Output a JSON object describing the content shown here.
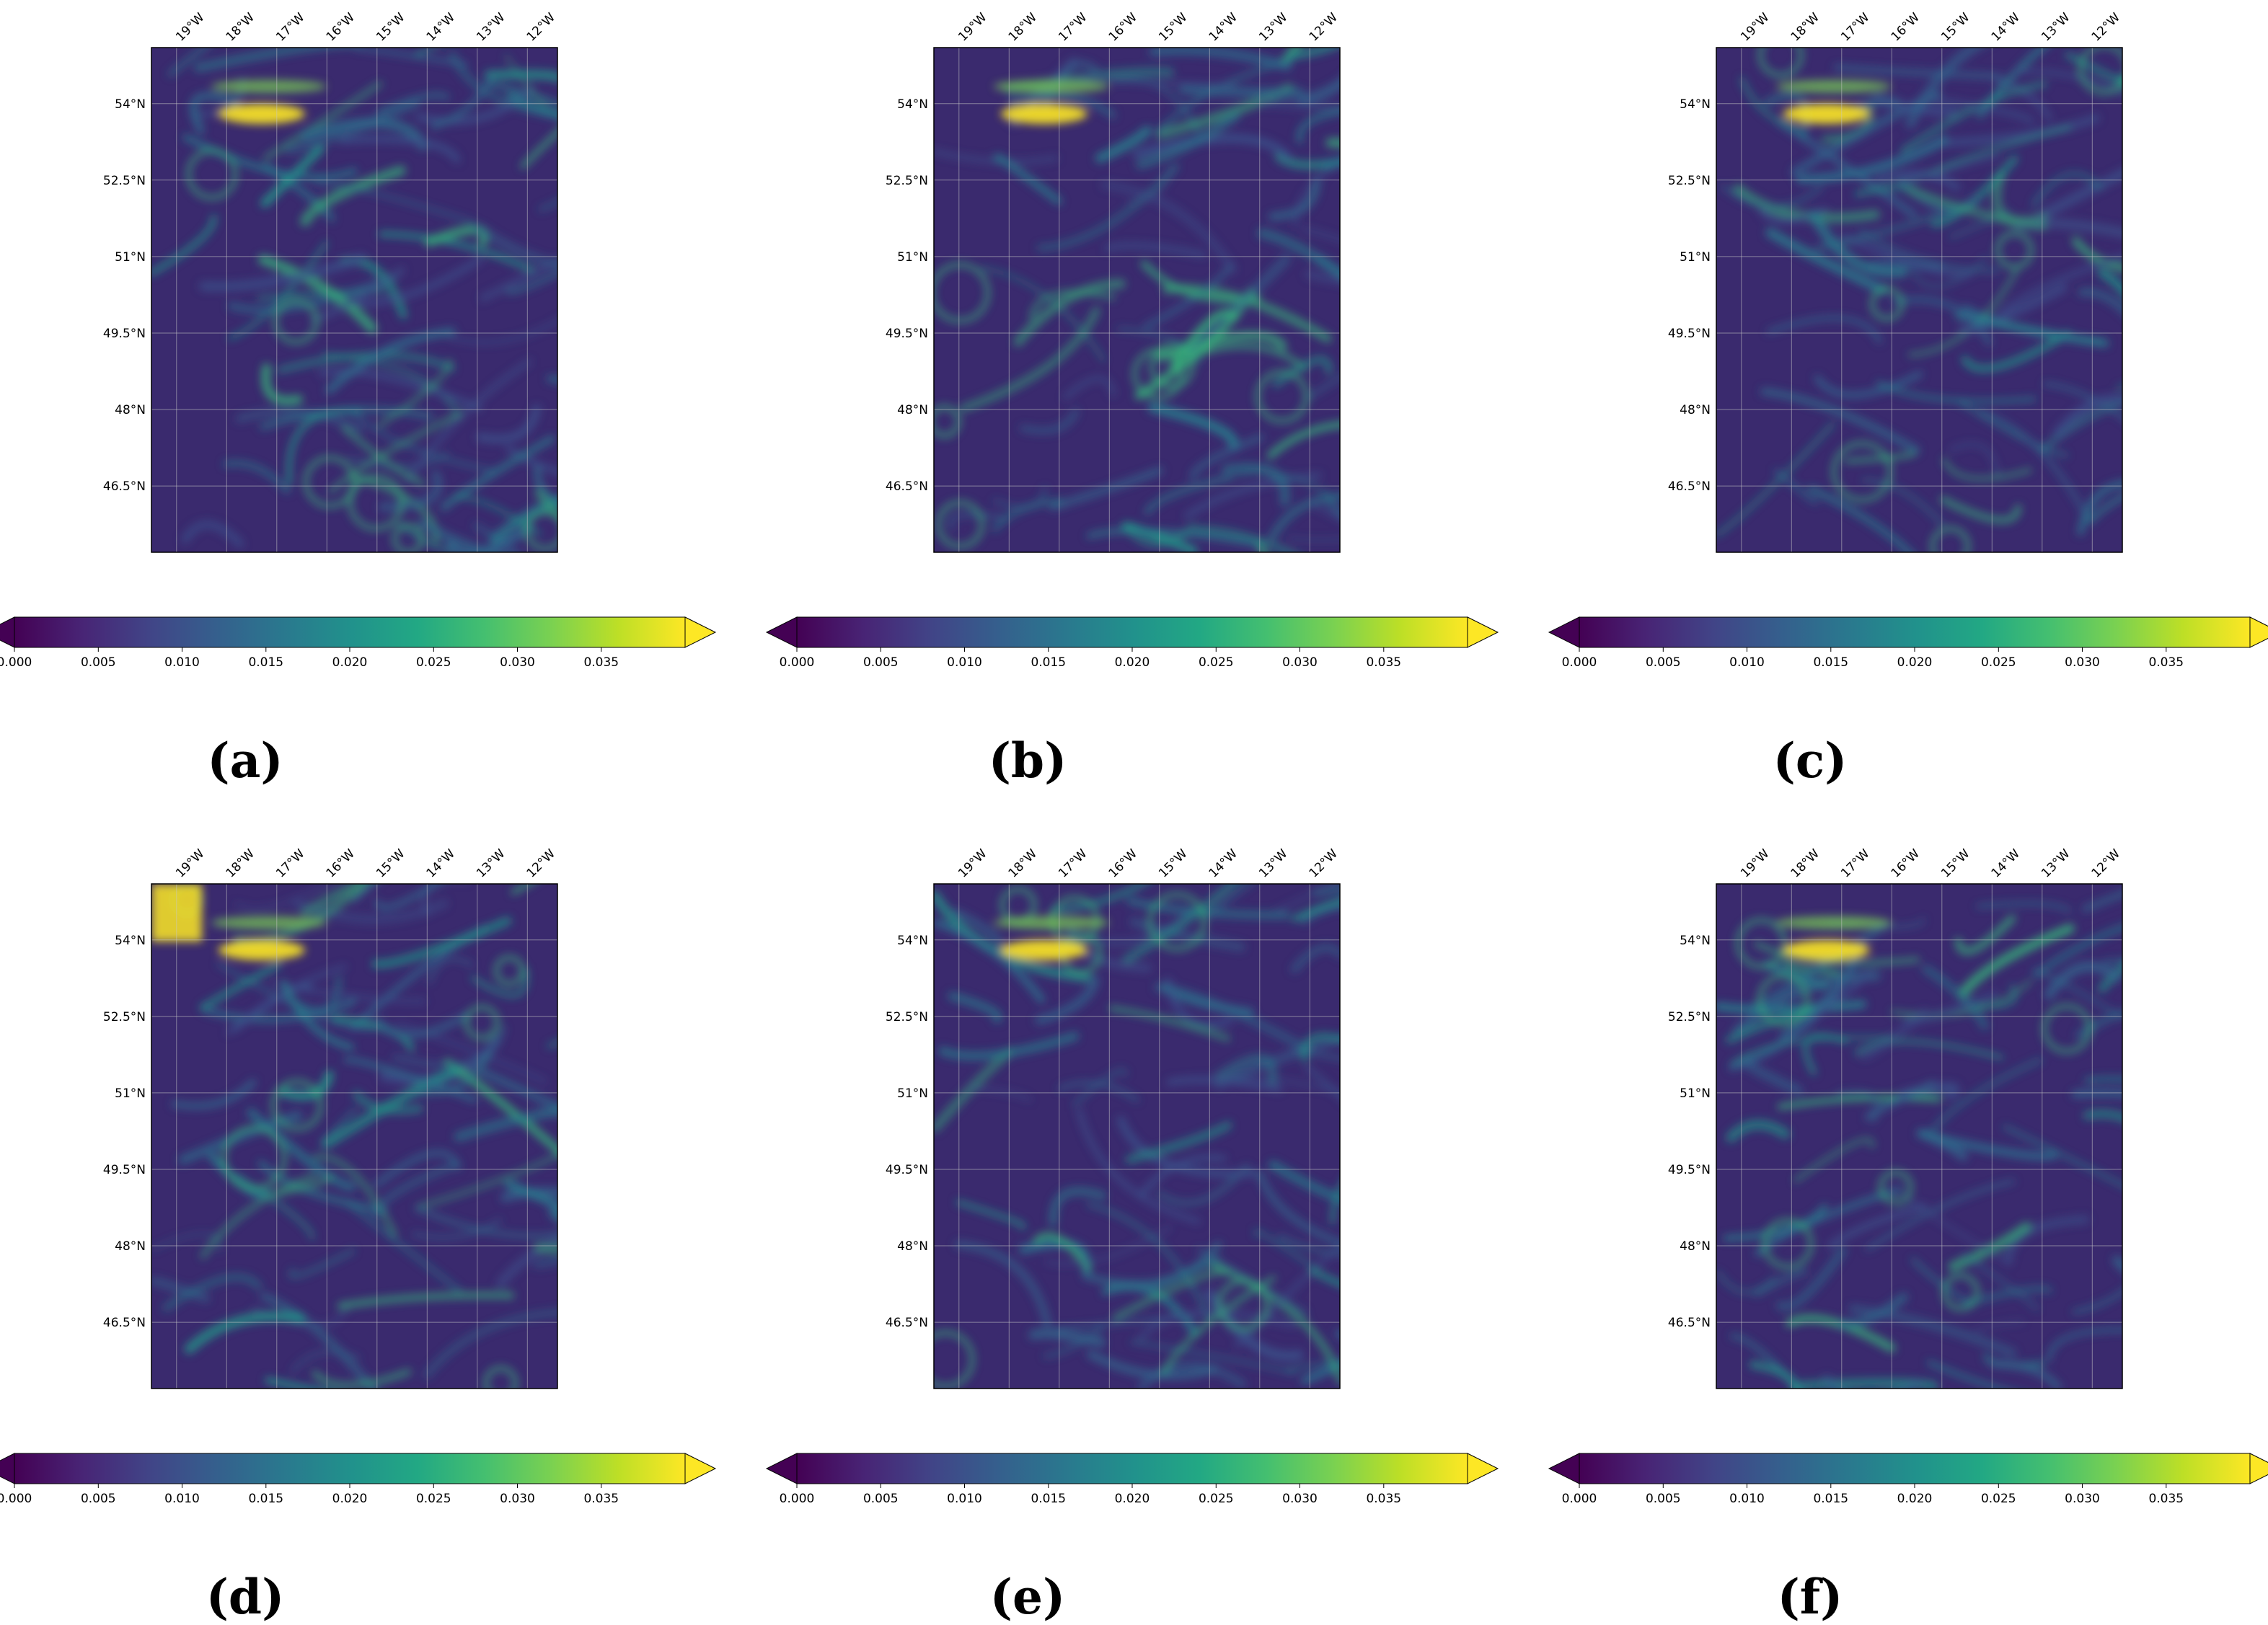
{
  "figure": {
    "panels": [
      {
        "label": "(a)"
      },
      {
        "label": "(b)"
      },
      {
        "label": "(c)"
      },
      {
        "label": "(d)"
      },
      {
        "label": "(e)"
      },
      {
        "label": "(f)"
      }
    ],
    "lon_ticks": [
      "19°W",
      "18°W",
      "17°W",
      "16°W",
      "15°W",
      "14°W",
      "13°W",
      "12°W"
    ],
    "lat_ticks": [
      "54°N",
      "52.5°N",
      "51°N",
      "49.5°N",
      "48°N",
      "46.5°N"
    ],
    "colorbar_ticks": [
      "0.000",
      "0.005",
      "0.010",
      "0.015",
      "0.020",
      "0.025",
      "0.030",
      "0.035"
    ]
  },
  "chart_data": {
    "type": "heatmap",
    "colormap": "viridis",
    "colorbar": {
      "min": 0.0,
      "max": 0.04,
      "extend": "both",
      "ticks": [
        0.0,
        0.005,
        0.01,
        0.015,
        0.02,
        0.025,
        0.03,
        0.035
      ]
    },
    "lon_range": [
      -19.5,
      -11.4
    ],
    "lat_range": [
      45.2,
      55.1
    ],
    "lon_tick_values": [
      -19,
      -18,
      -17,
      -16,
      -15,
      -14,
      -13,
      -12
    ],
    "lat_tick_values": [
      54,
      52.5,
      51,
      49.5,
      48,
      46.5
    ],
    "colors": {
      "low": "#440154",
      "mid": "#21918c",
      "high": "#fde725",
      "grid": "#c8c8c8"
    }
  }
}
